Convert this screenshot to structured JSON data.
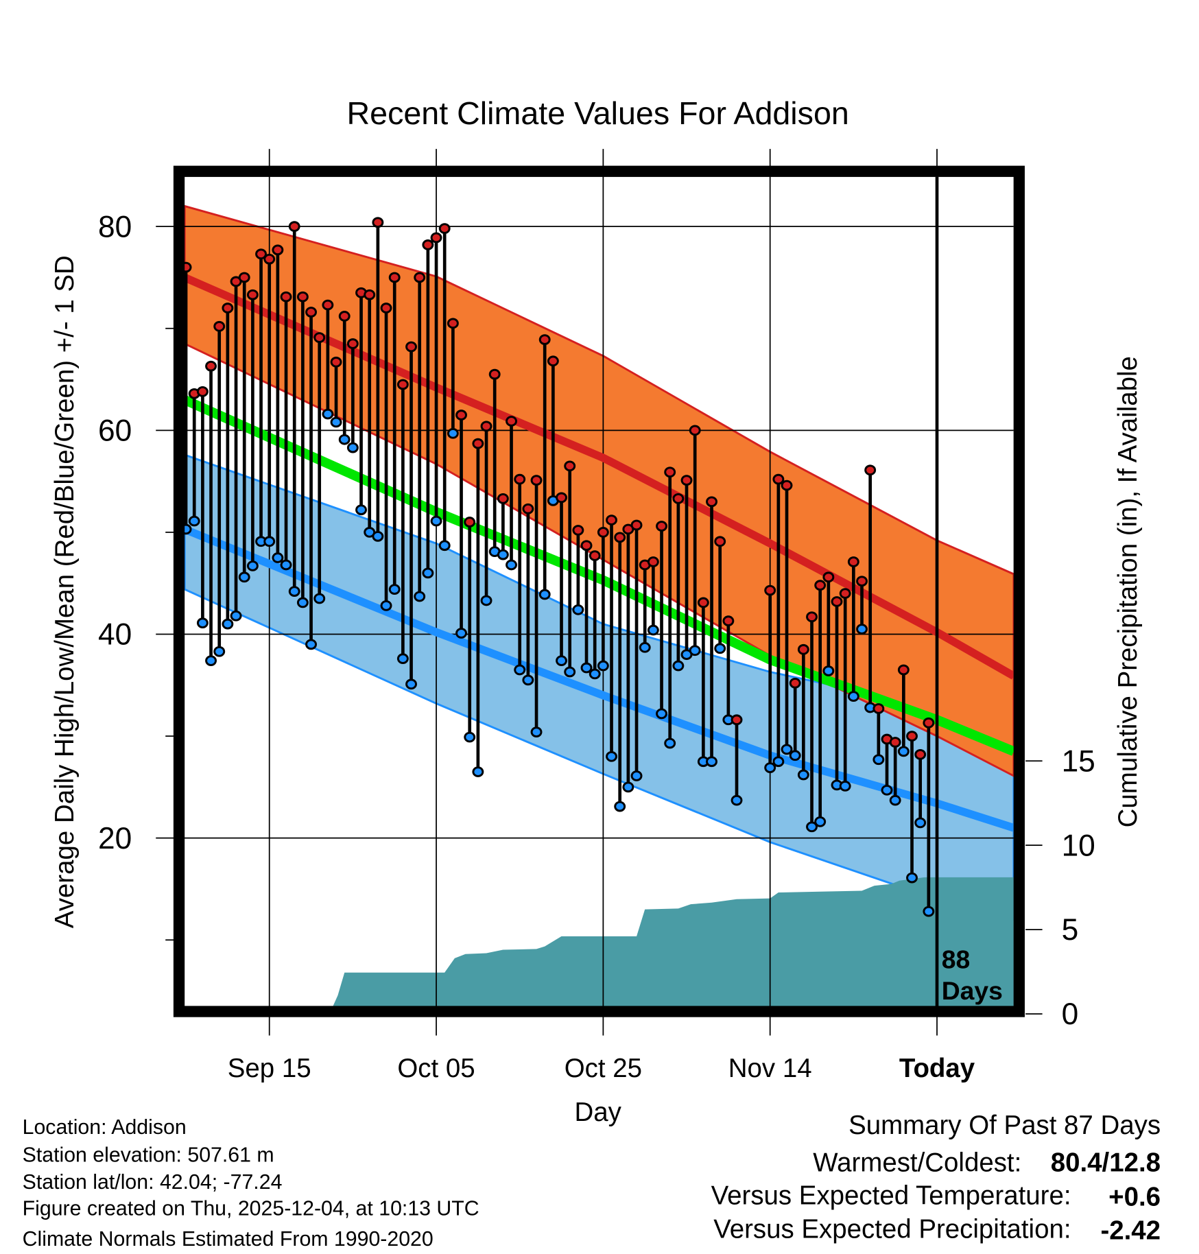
{
  "chart_data": {
    "type": "line",
    "title": "Recent Climate Values For Addison",
    "xlabel": "Day",
    "ylabel": "Average Daily High/Low/Mean (Red/Blue/Green) +/- 1 SD",
    "y2label": "Cumulative Precipitation (in), If Available",
    "x_unit": "days relative to Sep 15",
    "xlim": [
      -10.2,
      89.2
    ],
    "ylim": [
      1.5,
      86
    ],
    "y2lim": [
      0,
      35
    ],
    "x_ticks": [
      {
        "d": 0,
        "label": "Sep 15"
      },
      {
        "d": 20,
        "label": "Oct 05"
      },
      {
        "d": 40,
        "label": "Oct 25"
      },
      {
        "d": 60,
        "label": "Nov 14"
      },
      {
        "d": 80,
        "label": "Today"
      }
    ],
    "y_ticks": [
      {
        "v": 80,
        "label": "80"
      },
      {
        "v": 60,
        "label": "60"
      },
      {
        "v": 40,
        "label": "40"
      },
      {
        "v": 20,
        "label": "20"
      }
    ],
    "y_minor_ticks": [
      70,
      50,
      30,
      10
    ],
    "y2_ticks": [
      {
        "v": 0,
        "label": "0"
      },
      {
        "v": 5,
        "label": "5"
      },
      {
        "v": 10,
        "label": "10"
      },
      {
        "v": 15,
        "label": "15"
      }
    ],
    "today_marker": {
      "d": 80,
      "label_line1": "88",
      "label_line2": "Days"
    },
    "normals": {
      "x": [
        -10.15,
        20,
        40,
        60,
        80,
        89.2
      ],
      "high_upper_sd": [
        82.0,
        75.1,
        67.3,
        57.9,
        49.2,
        45.9
      ],
      "high_mean": [
        75.0,
        64.2,
        57.3,
        48.9,
        40.2,
        35.9
      ],
      "high_lower_sd": [
        68.5,
        56.7,
        47.3,
        37.9,
        30.0,
        26.1
      ],
      "mean": [
        63.0,
        52.0,
        45.3,
        37.5,
        31.6,
        28.5
      ],
      "low_upper_sd": [
        57.6,
        48.9,
        41.0,
        36.3,
        32.8,
        30.7
      ],
      "low_mean": [
        50.3,
        40.2,
        34.0,
        28.1,
        23.4,
        21.0
      ],
      "low_lower_sd": [
        44.4,
        33.2,
        26.3,
        19.6,
        14.0,
        12.0
      ]
    },
    "colors": {
      "high_band": "#f47a30",
      "high_line": "#d42020",
      "low_band": "#85c1e8",
      "low_line": "#1e90ff",
      "mean_line": "#00e600",
      "precip": "#4a9ca5",
      "high_dot": "#d42020",
      "low_dot": "#1e90ff"
    },
    "daily": {
      "d": [
        -10,
        -9,
        -8,
        -7,
        -6,
        -5,
        -4,
        -3,
        -2,
        -1,
        0,
        1,
        2,
        3,
        4,
        5,
        6,
        7,
        8,
        9,
        10,
        11,
        12,
        13,
        14,
        15,
        16,
        17,
        18,
        19,
        20,
        21,
        22,
        23,
        24,
        25,
        26,
        27,
        28,
        29,
        30,
        31,
        32,
        33,
        34,
        35,
        36,
        37,
        38,
        39,
        40,
        41,
        42,
        43,
        44,
        45,
        46,
        47,
        48,
        49,
        50,
        51,
        52,
        53,
        54,
        55,
        56,
        60,
        61,
        62,
        63,
        64,
        65,
        66,
        67,
        68,
        69,
        70,
        71,
        72,
        73,
        74,
        75,
        76,
        77,
        78,
        79
      ],
      "high": [
        76.0,
        63.6,
        63.8,
        66.3,
        70.2,
        72.0,
        74.6,
        75.0,
        73.3,
        77.3,
        76.8,
        77.7,
        73.1,
        80.0,
        73.1,
        71.6,
        69.1,
        72.3,
        66.7,
        71.2,
        68.5,
        73.5,
        73.3,
        80.4,
        72.0,
        75.0,
        64.5,
        68.2,
        75.0,
        78.2,
        78.9,
        79.8,
        70.5,
        61.5,
        51.0,
        58.7,
        60.4,
        65.5,
        53.3,
        60.9,
        55.2,
        52.3,
        55.1,
        68.9,
        66.8,
        53.4,
        56.5,
        50.2,
        48.7,
        47.7,
        50.0,
        51.2,
        49.5,
        50.3,
        50.7,
        46.8,
        47.1,
        50.6,
        55.9,
        53.3,
        55.1,
        60.0,
        43.1,
        53.0,
        49.1,
        41.3,
        31.6,
        44.3,
        55.2,
        54.6,
        35.2,
        38.5,
        41.7,
        44.8,
        45.6,
        43.2,
        44.0,
        47.1,
        45.2,
        56.1,
        32.7,
        29.7,
        29.4,
        36.5,
        30.0,
        28.2,
        31.3
      ],
      "low": [
        50.3,
        51.1,
        41.1,
        37.4,
        38.3,
        41.0,
        41.8,
        45.6,
        46.7,
        49.1,
        49.1,
        47.5,
        46.8,
        44.2,
        43.1,
        39.0,
        43.5,
        61.6,
        60.8,
        59.1,
        58.3,
        52.2,
        50.0,
        49.6,
        42.8,
        44.4,
        37.6,
        35.1,
        43.7,
        46.0,
        51.1,
        48.7,
        59.7,
        40.1,
        29.9,
        26.5,
        43.3,
        48.1,
        47.8,
        46.8,
        36.5,
        35.5,
        30.4,
        43.9,
        53.1,
        37.4,
        36.3,
        42.4,
        36.7,
        36.1,
        36.9,
        28.0,
        23.1,
        25.0,
        26.1,
        38.7,
        40.4,
        32.2,
        29.3,
        36.9,
        38.0,
        38.4,
        27.5,
        27.5,
        38.6,
        31.6,
        23.7,
        26.9,
        27.5,
        28.7,
        28.1,
        26.2,
        21.1,
        21.6,
        36.4,
        25.2,
        25.1,
        33.9,
        40.5,
        32.8,
        27.7,
        24.7,
        23.7,
        28.5,
        16.1,
        21.5,
        12.8
      ]
    },
    "precip_cumulative": {
      "d": [
        -10.15,
        7.2,
        8.2,
        9.0,
        21.0,
        22.2,
        23.5,
        26.0,
        28.0,
        32.0,
        33.0,
        35.0,
        36.0,
        44.0,
        45.0,
        49.0,
        50.5,
        53.0,
        56.0,
        60.0,
        61.0,
        66.0,
        71.0,
        72.5,
        74.5,
        75.5,
        77.0,
        78.5,
        89.2
      ],
      "inches": [
        0,
        0,
        1.1,
        2.45,
        2.45,
        3.3,
        3.55,
        3.6,
        3.8,
        3.85,
        4.0,
        4.6,
        4.6,
        4.6,
        6.2,
        6.25,
        6.5,
        6.6,
        6.8,
        6.85,
        7.2,
        7.25,
        7.3,
        7.6,
        7.7,
        7.9,
        8.0,
        8.1,
        8.1
      ]
    }
  },
  "footer": {
    "location": "Location: Addison",
    "elevation": "Station elevation: 507.61 m",
    "latlon": "Station lat/lon: 42.04; -77.24",
    "created": "Figure created on Thu, 2025-12-04, at 10:13 UTC",
    "normals": "Climate Normals Estimated From 1990-2020"
  },
  "summary": {
    "heading": "Summary Of Past 87 Days",
    "warm_cold_label": "Warmest/Coldest:",
    "warm_cold_value": "80.4/12.8",
    "temp_label": "Versus Expected Temperature:",
    "temp_value": "+0.6",
    "precip_label": "Versus Expected Precipitation:",
    "precip_value": "-2.42",
    "temp_color": "#d42020",
    "precip_color": "#a0522d"
  }
}
